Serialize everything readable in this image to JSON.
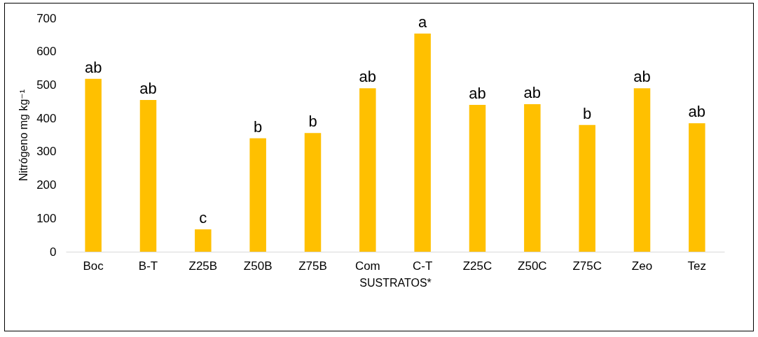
{
  "chart_data": {
    "type": "bar",
    "xlabel": "SUSTRATOS*",
    "ylabel": "Nitrógeno mg kg⁻¹",
    "categories": [
      "Boc",
      "B-T",
      "Z25B",
      "Z50B",
      "Z75B",
      "Com",
      "C-T",
      "Z25C",
      "Z50C",
      "Z75C",
      "Zeo",
      "Tez"
    ],
    "values": [
      518,
      455,
      67,
      340,
      356,
      490,
      654,
      440,
      442,
      380,
      490,
      385
    ],
    "color": "#ffc000",
    "ylim": [
      0,
      700
    ],
    "yticks": [
      0,
      100,
      200,
      300,
      400,
      500,
      600,
      700
    ],
    "grid": false,
    "annotations": [
      {
        "text": "ab",
        "x": "Boc",
        "y": 518
      },
      {
        "text": "ab",
        "x": "B-T",
        "y": 455
      },
      {
        "text": "c",
        "x": "Z25B",
        "y": 67
      },
      {
        "text": "b",
        "x": "Z50B",
        "y": 340
      },
      {
        "text": "b",
        "x": "Z75B",
        "y": 356
      },
      {
        "text": "ab",
        "x": "Com",
        "y": 490
      },
      {
        "text": "a",
        "x": "C-T",
        "y": 654
      },
      {
        "text": "ab",
        "x": "Z25C",
        "y": 440
      },
      {
        "text": "ab",
        "x": "Z50C",
        "y": 442
      },
      {
        "text": "b",
        "x": "Z75C",
        "y": 380
      },
      {
        "text": "ab",
        "x": "Zeo",
        "y": 490
      },
      {
        "text": "ab",
        "x": "Tez",
        "y": 385
      }
    ]
  }
}
